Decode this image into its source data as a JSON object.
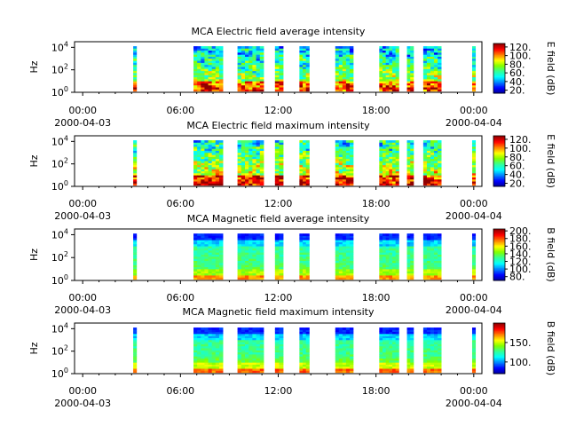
{
  "colormap": [
    "#00008f",
    "#0000ff",
    "#007fff",
    "#00ffff",
    "#33ff99",
    "#7fff00",
    "#ffff00",
    "#ff7f00",
    "#ff0000",
    "#8f0000"
  ],
  "chart_data": [
    {
      "type": "heatmap",
      "title": "MCA  Electric field average intensity",
      "ylabel": "Hz",
      "ytick_labels": [
        "10^0",
        "10^2",
        "10^4"
      ],
      "ylim_log10": [
        0,
        4.5
      ],
      "xlim_hours": [
        -0.5,
        24.5
      ],
      "xtick_hours": [
        0,
        6,
        12,
        18,
        24
      ],
      "xtick_labels": [
        "00:00",
        "06:00",
        "12:00",
        "18:00",
        "00:00"
      ],
      "xdate_labels": [
        "2000-04-03",
        "2000-04-04"
      ],
      "colorbar_label": "E field (dB)",
      "colorbar_range": [
        13,
        128
      ],
      "colorbar_ticks": [
        20,
        40,
        60,
        80,
        100,
        120
      ],
      "colorbar_tick_labels": [
        "20.",
        "40.",
        "60.",
        "80.",
        "100.",
        "120."
      ],
      "field": "E",
      "mode": "avg",
      "data_intervals_hours": [
        [
          3.1,
          3.3
        ],
        [
          6.8,
          8.6
        ],
        [
          9.5,
          11.1
        ],
        [
          11.8,
          12.3
        ],
        [
          13.3,
          13.9
        ],
        [
          15.5,
          16.6
        ],
        [
          18.2,
          19.4
        ],
        [
          19.9,
          20.3
        ],
        [
          20.9,
          22.0
        ],
        [
          23.9,
          24.1
        ]
      ]
    },
    {
      "type": "heatmap",
      "title": "MCA  Electric field maximum intensity",
      "ylabel": "Hz",
      "ytick_labels": [
        "10^0",
        "10^2",
        "10^4"
      ],
      "ylim_log10": [
        0,
        4.5
      ],
      "xlim_hours": [
        -0.5,
        24.5
      ],
      "xtick_hours": [
        0,
        6,
        12,
        18,
        24
      ],
      "xtick_labels": [
        "00:00",
        "06:00",
        "12:00",
        "18:00",
        "00:00"
      ],
      "xdate_labels": [
        "2000-04-03",
        "2000-04-04"
      ],
      "colorbar_label": "E field (dB)",
      "colorbar_range": [
        13,
        128
      ],
      "colorbar_ticks": [
        20,
        40,
        60,
        80,
        100,
        120
      ],
      "colorbar_tick_labels": [
        "20.",
        "40.",
        "60.",
        "80.",
        "100.",
        "120."
      ],
      "field": "E",
      "mode": "max",
      "data_intervals_hours": [
        [
          3.1,
          3.3
        ],
        [
          6.8,
          8.6
        ],
        [
          9.5,
          11.1
        ],
        [
          11.8,
          12.3
        ],
        [
          13.3,
          13.9
        ],
        [
          15.5,
          16.6
        ],
        [
          18.2,
          19.4
        ],
        [
          19.9,
          20.3
        ],
        [
          20.9,
          22.0
        ],
        [
          23.9,
          24.1
        ]
      ]
    },
    {
      "type": "heatmap",
      "title": "MCA  Magnetic field average intensity",
      "ylabel": "Hz",
      "ytick_labels": [
        "10^0",
        "10^2",
        "10^4"
      ],
      "ylim_log10": [
        0,
        4.5
      ],
      "xlim_hours": [
        -0.5,
        24.5
      ],
      "xtick_hours": [
        0,
        6,
        12,
        18,
        24
      ],
      "xtick_labels": [
        "00:00",
        "06:00",
        "12:00",
        "18:00",
        "00:00"
      ],
      "xdate_labels": [
        "2000-04-03",
        "2000-04-04"
      ],
      "colorbar_label": "B field (dB)",
      "colorbar_range": [
        70,
        205
      ],
      "colorbar_ticks": [
        80,
        100,
        120,
        140,
        160,
        180,
        200
      ],
      "colorbar_tick_labels": [
        "80.",
        "100.",
        "120.",
        "140.",
        "160.",
        "180.",
        "200."
      ],
      "field": "B",
      "mode": "avg",
      "data_intervals_hours": [
        [
          3.1,
          3.3
        ],
        [
          6.8,
          8.6
        ],
        [
          9.5,
          11.1
        ],
        [
          11.8,
          12.3
        ],
        [
          13.3,
          13.9
        ],
        [
          15.5,
          16.6
        ],
        [
          18.2,
          19.4
        ],
        [
          19.9,
          20.3
        ],
        [
          20.9,
          22.0
        ],
        [
          23.9,
          24.1
        ]
      ]
    },
    {
      "type": "heatmap",
      "title": "MCA  Magnetic field maximum intensity",
      "ylabel": "Hz",
      "ytick_labels": [
        "10^0",
        "10^2",
        "10^4"
      ],
      "ylim_log10": [
        0,
        4.5
      ],
      "xlim_hours": [
        -0.5,
        24.5
      ],
      "xtick_hours": [
        0,
        6,
        12,
        18,
        24
      ],
      "xtick_labels": [
        "00:00",
        "06:00",
        "12:00",
        "18:00",
        "00:00"
      ],
      "xdate_labels": [
        "2000-04-03",
        "2000-04-04"
      ],
      "colorbar_label": "B field (dB)",
      "colorbar_range": [
        70,
        200
      ],
      "colorbar_ticks": [
        100,
        150
      ],
      "colorbar_tick_labels": [
        "100.",
        "150."
      ],
      "field": "B",
      "mode": "max",
      "data_intervals_hours": [
        [
          3.1,
          3.3
        ],
        [
          6.8,
          8.6
        ],
        [
          9.5,
          11.1
        ],
        [
          11.8,
          12.3
        ],
        [
          13.3,
          13.9
        ],
        [
          15.5,
          16.6
        ],
        [
          18.2,
          19.4
        ],
        [
          19.9,
          20.3
        ],
        [
          20.9,
          22.0
        ],
        [
          23.9,
          24.1
        ]
      ]
    }
  ]
}
